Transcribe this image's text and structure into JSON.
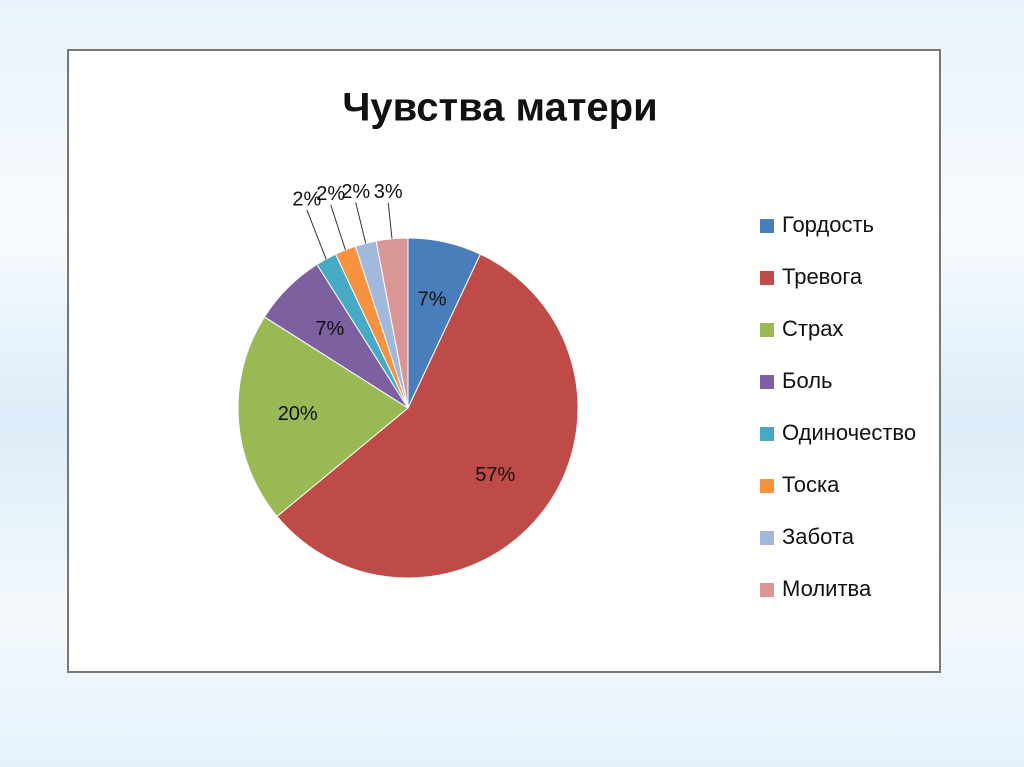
{
  "chart_data": {
    "type": "pie",
    "title": "Чувства матери",
    "categories": [
      "Гордость",
      "Тревога",
      "Страх",
      "Боль",
      "Одиночество",
      "Тоска",
      "Забота",
      "Молитва"
    ],
    "values": [
      7,
      57,
      20,
      7,
      2,
      2,
      2,
      3
    ],
    "value_labels": [
      "7%",
      "57%",
      "20%",
      "7%",
      "2%",
      "2%",
      "2%",
      "3%"
    ],
    "colors": [
      "#4a7ebb",
      "#be4b48",
      "#98b954",
      "#7d60a0",
      "#46aac5",
      "#f69240",
      "#a2b7dc",
      "#d99694"
    ],
    "legend": "right"
  }
}
